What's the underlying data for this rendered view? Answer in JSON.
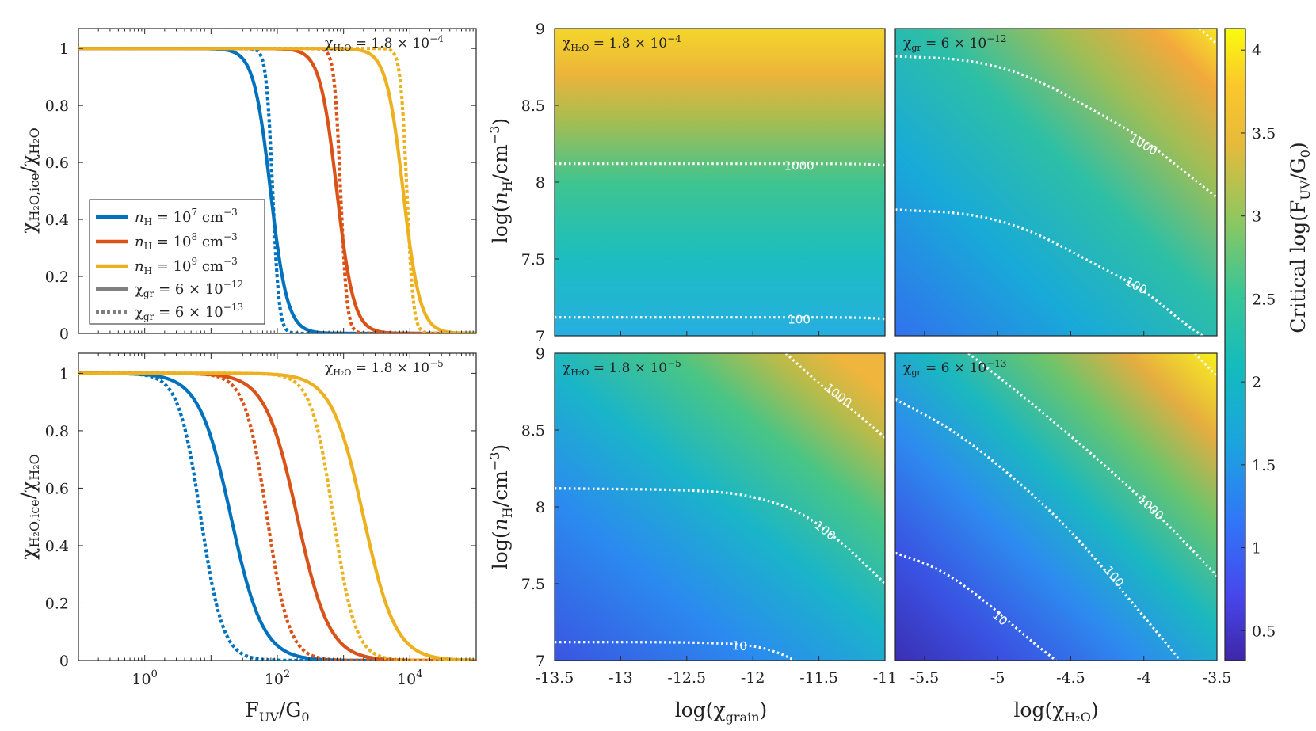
{
  "colors": {
    "blue": "#0072BD",
    "red": "#D95319",
    "yellow": "#EDB120",
    "gray": "#7f7f7f",
    "contour": "#ffffff"
  },
  "left_panels": {
    "xlabel": "F",
    "xlabel_sub": "UV",
    "xlabel_rest": "/G",
    "xlabel_sub2": "0",
    "ylabel": "χ",
    "ylabel_sub": "H₂O,ice",
    "ylabel_mid": "/χ",
    "ylabel_sub2": "H₂O",
    "x_ticks": [
      {
        "value": 0,
        "base": "10",
        "exp": "0"
      },
      {
        "value": 2,
        "base": "10",
        "exp": "2"
      },
      {
        "value": 4,
        "base": "10",
        "exp": "4"
      }
    ],
    "y_ticks": [
      "0",
      "0.2",
      "0.4",
      "0.6",
      "0.8",
      "1"
    ],
    "top_annotation": {
      "chi": "χ",
      "sub": "H₂O",
      "rest": " = 1.8 × 10",
      "exp": "−4"
    },
    "bottom_annotation": {
      "chi": "χ",
      "sub": "H₂O",
      "rest": " = 1.8 × 10",
      "exp": "−5"
    }
  },
  "legend": {
    "entries": [
      {
        "sym": "n",
        "sub": "H",
        "rest": " = 10",
        "exp": "7",
        "unit": " cm",
        "unit_exp": "−3"
      },
      {
        "sym": "n",
        "sub": "H",
        "rest": " = 10",
        "exp": "8",
        "unit": " cm",
        "unit_exp": "−3"
      },
      {
        "sym": "n",
        "sub": "H",
        "rest": " = 10",
        "exp": "9",
        "unit": " cm",
        "unit_exp": "−3"
      },
      {
        "sym": "χ",
        "sub": "gr",
        "rest": " = 6 × 10",
        "exp": "−12",
        "unit": "",
        "unit_exp": ""
      },
      {
        "sym": "χ",
        "sub": "gr",
        "rest": " = 6 × 10",
        "exp": "−13",
        "unit": "",
        "unit_exp": ""
      }
    ]
  },
  "heatmaps": {
    "left_xlabel": "log(χ",
    "left_xlabel_sub": "grain",
    "left_xlabel_end": ")",
    "right_xlabel": "log(χ",
    "right_xlabel_sub": "H₂O",
    "right_xlabel_end": ")",
    "ylabel": "log(",
    "ylabel_n": "n",
    "ylabel_sub": "H",
    "ylabel_rest": "/cm",
    "ylabel_exp": "−3",
    "ylabel_end": ")",
    "left_x_ticks": [
      "-13.5",
      "-13",
      "-12.5",
      "-12",
      "-11.5",
      "-11"
    ],
    "right_x_ticks": [
      "-5.5",
      "-5",
      "-4.5",
      "-4",
      "-3.5"
    ],
    "y_ticks": [
      "7",
      "7.5",
      "8",
      "8.5",
      "9"
    ],
    "panel_labels": [
      {
        "chi": "χ",
        "sub": "H₂O",
        "rest": " = 1.8 × 10",
        "exp": "−4"
      },
      {
        "chi": "χ",
        "sub": "gr",
        "rest": " = 6 × 10",
        "exp": "−12"
      },
      {
        "chi": "χ",
        "sub": "H₂O",
        "rest": " = 1.8 × 10",
        "exp": "−5"
      },
      {
        "chi": "χ",
        "sub": "gr",
        "rest": " = 6 × 10",
        "exp": "−13"
      }
    ],
    "contour_labels": [
      "10",
      "100",
      "1000"
    ]
  },
  "colorbar": {
    "label": "Critical log(F",
    "label_sub": "UV",
    "label_rest": "/G",
    "label_sub2": "0",
    "label_end": ")",
    "ticks": [
      "0.5",
      "1",
      "1.5",
      "2",
      "2.5",
      "3",
      "3.5",
      "4"
    ],
    "range": [
      0.32,
      4.13
    ]
  },
  "chart_data": [
    {
      "type": "line",
      "panel": "top-left",
      "title": "χ_H2O = 1.8 × 10^-4",
      "xlabel": "F_UV/G_0",
      "ylabel": "χ_H2O,ice/χ_H2O",
      "xscale": "log",
      "xlim": [
        0.1,
        100000
      ],
      "ylim": [
        0,
        1.07
      ],
      "curve_model": "y = 1/(1 + (x/x50)^slope)",
      "series": [
        {
          "name": "n_H = 10^7 cm^-3, χ_gr = 6 × 10^-12",
          "color": "blue",
          "dash": false,
          "x50": 79,
          "slope": 3.4
        },
        {
          "name": "n_H = 10^8 cm^-3, χ_gr = 6 × 10^-12",
          "color": "red",
          "dash": false,
          "x50": 790,
          "slope": 3.4
        },
        {
          "name": "n_H = 10^9 cm^-3, χ_gr = 6 × 10^-12",
          "color": "yellow",
          "dash": false,
          "x50": 7900,
          "slope": 3.4
        },
        {
          "name": "n_H = 10^7 cm^-3, χ_gr = 6 × 10^-13",
          "color": "blue",
          "dash": true,
          "x50": 85,
          "slope": 9
        },
        {
          "name": "n_H = 10^8 cm^-3, χ_gr = 6 × 10^-13",
          "color": "red",
          "dash": true,
          "x50": 900,
          "slope": 9
        },
        {
          "name": "n_H = 10^9 cm^-3, χ_gr = 6 × 10^-13",
          "color": "yellow",
          "dash": true,
          "x50": 9000,
          "slope": 9
        }
      ]
    },
    {
      "type": "line",
      "panel": "bottom-left",
      "title": "χ_H2O = 1.8 × 10^-5",
      "xlabel": "F_UV/G_0",
      "ylabel": "χ_H2O,ice/χ_H2O",
      "xscale": "log",
      "xlim": [
        0.1,
        100000
      ],
      "ylim": [
        0,
        1.07
      ],
      "curve_model": "y = 1/(1 + (x/x50)^slope)",
      "series": [
        {
          "name": "n_H = 10^7 cm^-3, χ_gr = 6 × 10^-12",
          "color": "blue",
          "dash": false,
          "x50": 20,
          "slope": 1.8
        },
        {
          "name": "n_H = 10^8 cm^-3, χ_gr = 6 × 10^-12",
          "color": "red",
          "dash": false,
          "x50": 200,
          "slope": 1.8
        },
        {
          "name": "n_H = 10^9 cm^-3, χ_gr = 6 × 10^-12",
          "color": "yellow",
          "dash": false,
          "x50": 2000,
          "slope": 1.8
        },
        {
          "name": "n_H = 10^7 cm^-3, χ_gr = 6 × 10^-13",
          "color": "blue",
          "dash": true,
          "x50": 7,
          "slope": 2.6
        },
        {
          "name": "n_H = 10^8 cm^-3, χ_gr = 6 × 10^-13",
          "color": "red",
          "dash": true,
          "x50": 70,
          "slope": 2.6
        },
        {
          "name": "n_H = 10^9 cm^-3, χ_gr = 6 × 10^-13",
          "color": "yellow",
          "dash": true,
          "x50": 700,
          "slope": 2.6
        }
      ]
    },
    {
      "type": "heatmap",
      "panel": "heat-top-left",
      "title": "χ_H2O = 1.8 × 10^-4",
      "xlabel": "log(χ_grain)",
      "ylabel": "log(n_H/cm^-3)",
      "xlim": [
        -13.5,
        -11
      ],
      "ylim": [
        7,
        9
      ],
      "z_model": "z = a + b*(y-7) + c*max(0, x-xk)*(y-7)",
      "z_params": {
        "a": 2.0,
        "b": 1.05,
        "c": 0.0,
        "xk": -11.5
      },
      "contours": [
        {
          "level": "100",
          "points": [
            [
              -13.5,
              7.12
            ],
            [
              -12,
              7.12
            ],
            [
              -11.2,
              7.12
            ],
            [
              -11,
              7.11
            ]
          ],
          "label_at": [
            -11.65,
            7.11
          ]
        },
        {
          "level": "1000",
          "points": [
            [
              -13.5,
              8.12
            ],
            [
              -12,
              8.12
            ],
            [
              -11.2,
              8.12
            ],
            [
              -11,
              8.11
            ]
          ],
          "label_at": [
            -11.65,
            8.11
          ]
        }
      ]
    },
    {
      "type": "heatmap",
      "panel": "heat-top-right",
      "title": "χ_gr = 6 × 10^-12",
      "xlabel": "log(χ_H2O)",
      "ylabel": "log(n_H/cm^-3)",
      "xlim": [
        -5.7,
        -3.5
      ],
      "ylim": [
        7,
        9
      ],
      "contours": [
        {
          "level": "100",
          "points": [
            [
              -5.7,
              7.82
            ],
            [
              -5.2,
              7.8
            ],
            [
              -4.8,
              7.7
            ],
            [
              -4.4,
              7.5
            ],
            [
              -4.0,
              7.3
            ],
            [
              -3.75,
              7.1
            ],
            [
              -3.6,
              7.0
            ]
          ],
          "label_at": [
            -4.05,
            7.33
          ]
        },
        {
          "level": "1000",
          "points": [
            [
              -5.7,
              8.82
            ],
            [
              -5.2,
              8.8
            ],
            [
              -4.8,
              8.7
            ],
            [
              -4.4,
              8.5
            ],
            [
              -4.0,
              8.28
            ],
            [
              -3.7,
              8.05
            ],
            [
              -3.5,
              7.9
            ]
          ],
          "label_at": [
            -4.0,
            8.25
          ]
        },
        {
          "level": "10000",
          "points": [
            [
              -3.62,
              9.0
            ],
            [
              -3.5,
              8.9
            ]
          ],
          "label_at": null
        }
      ]
    },
    {
      "type": "heatmap",
      "panel": "heat-bottom-left",
      "title": "χ_H2O = 1.8 × 10^-5",
      "xlabel": "log(χ_grain)",
      "ylabel": "log(n_H/cm^-3)",
      "xlim": [
        -13.5,
        -11
      ],
      "ylim": [
        7,
        9
      ],
      "contours": [
        {
          "level": "10",
          "points": [
            [
              -13.5,
              7.12
            ],
            [
              -12.4,
              7.12
            ],
            [
              -12.0,
              7.1
            ],
            [
              -11.8,
              7.05
            ],
            [
              -11.68,
              7.0
            ]
          ],
          "label_at": [
            -12.1,
            7.1
          ]
        },
        {
          "level": "100",
          "points": [
            [
              -13.5,
              8.12
            ],
            [
              -12.3,
              8.11
            ],
            [
              -11.9,
              8.05
            ],
            [
              -11.6,
              7.95
            ],
            [
              -11.3,
              7.75
            ],
            [
              -11.0,
              7.5
            ]
          ],
          "label_at": [
            -11.45,
            7.85
          ]
        },
        {
          "level": "1000",
          "points": [
            [
              -11.75,
              9.0
            ],
            [
              -11.5,
              8.8
            ],
            [
              -11.2,
              8.6
            ],
            [
              -11.0,
              8.45
            ]
          ],
          "label_at": [
            -11.35,
            8.73
          ]
        }
      ]
    },
    {
      "type": "heatmap",
      "panel": "heat-bottom-right",
      "title": "χ_gr = 6 × 10^-13",
      "xlabel": "log(χ_H2O)",
      "ylabel": "log(n_H/cm^-3)",
      "xlim": [
        -5.7,
        -3.5
      ],
      "ylim": [
        7,
        9
      ],
      "contours": [
        {
          "level": "10",
          "points": [
            [
              -5.7,
              7.7
            ],
            [
              -5.4,
              7.6
            ],
            [
              -5.1,
              7.4
            ],
            [
              -4.8,
              7.15
            ],
            [
              -4.6,
              7.0
            ]
          ],
          "label_at": [
            -4.98,
            7.28
          ]
        },
        {
          "level": "100",
          "points": [
            [
              -5.7,
              8.7
            ],
            [
              -5.3,
              8.5
            ],
            [
              -4.9,
              8.2
            ],
            [
              -4.5,
              7.85
            ],
            [
              -4.1,
              7.4
            ],
            [
              -3.75,
              7.0
            ]
          ],
          "label_at": [
            -4.2,
            7.55
          ]
        },
        {
          "level": "1000",
          "points": [
            [
              -5.2,
              9.0
            ],
            [
              -4.8,
              8.7
            ],
            [
              -4.3,
              8.3
            ],
            [
              -3.9,
              7.95
            ],
            [
              -3.5,
              7.55
            ]
          ],
          "label_at": [
            -3.95,
            8.0
          ]
        },
        {
          "level": "10000",
          "points": [
            [
              -3.65,
              9.0
            ],
            [
              -3.5,
              8.85
            ]
          ],
          "label_at": null
        }
      ]
    }
  ]
}
